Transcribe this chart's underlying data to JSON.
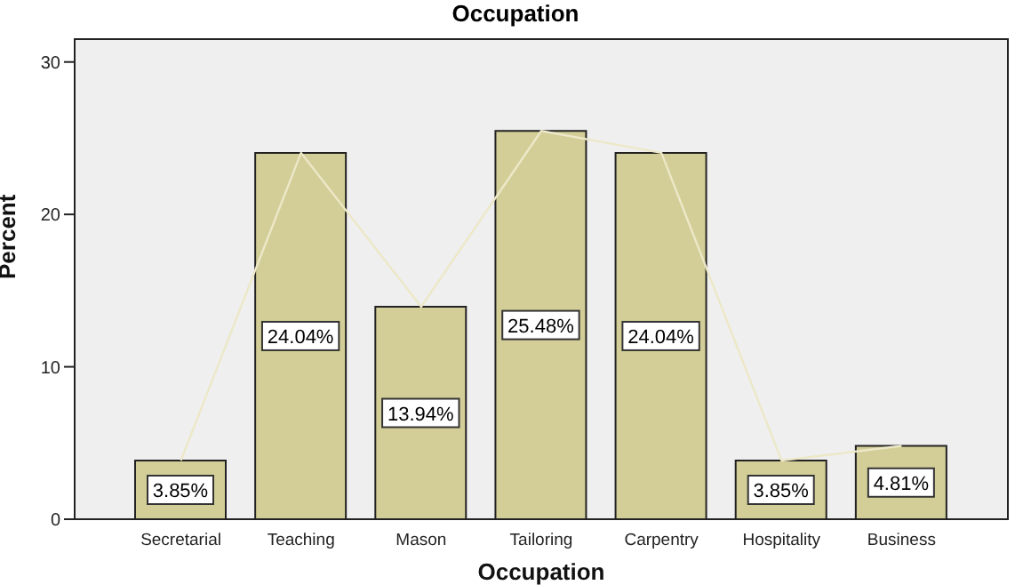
{
  "chart_data": {
    "type": "bar",
    "title": "Occupation",
    "xlabel": "Occupation",
    "ylabel": "Percent",
    "categories": [
      "Secretarial",
      "Teaching",
      "Mason",
      "Tailoring",
      "Carpentry",
      "Hospitality",
      "Business"
    ],
    "series": [
      {
        "type": "line",
        "color": "#ece8c8",
        "values": [
          3.85,
          24.04,
          13.94,
          25.48,
          24.04,
          3.85,
          4.81
        ]
      },
      {
        "color": "#d3ce97",
        "values": [
          3.85,
          24.04,
          13.94,
          25.48,
          24.04,
          3.85,
          4.81
        ],
        "value_labels": [
          "3.85%",
          "24.04%",
          "13.94%",
          "25.48%",
          "24.04%",
          "3.85%",
          "4.81%"
        ]
      }
    ],
    "ylim": [
      0,
      31.5
    ],
    "yticks": [
      0,
      10,
      20,
      30
    ],
    "legend": false
  }
}
